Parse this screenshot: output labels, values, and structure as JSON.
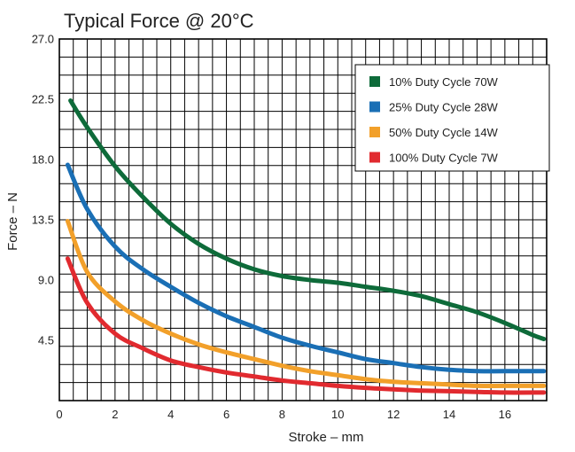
{
  "chart_data": {
    "type": "line",
    "title": "Typical Force @ 20°C",
    "xlabel": "Stroke – mm",
    "ylabel": "Force – N",
    "xlim": [
      0,
      17.5
    ],
    "ylim": [
      0,
      27
    ],
    "x_ticks": [
      "0",
      "2",
      "4",
      "6",
      "8",
      "10",
      "12",
      "14",
      "16"
    ],
    "y_ticks": [
      "4.5",
      "9.0",
      "13.5",
      "18.0",
      "22.5",
      "27.0"
    ],
    "grid": true,
    "legend_position": "top-right",
    "series": [
      {
        "name": "10% Duty Cycle 70W",
        "color": "#0e6b3a",
        "points": [
          [
            0.4,
            22.4
          ],
          [
            1,
            20.4
          ],
          [
            2,
            17.5
          ],
          [
            3,
            15.2
          ],
          [
            4,
            13.2
          ],
          [
            5,
            11.7
          ],
          [
            6,
            10.6
          ],
          [
            7,
            9.8
          ],
          [
            8,
            9.3
          ],
          [
            9,
            9.0
          ],
          [
            10,
            8.8
          ],
          [
            11,
            8.5
          ],
          [
            12,
            8.2
          ],
          [
            13,
            7.8
          ],
          [
            14,
            7.2
          ],
          [
            15,
            6.6
          ],
          [
            16,
            5.8
          ],
          [
            17,
            4.9
          ],
          [
            17.4,
            4.6
          ]
        ]
      },
      {
        "name": "25% Duty Cycle 28W",
        "color": "#1a6fb5",
        "points": [
          [
            0.3,
            17.6
          ],
          [
            1,
            14.3
          ],
          [
            2,
            11.5
          ],
          [
            3,
            9.8
          ],
          [
            4,
            8.5
          ],
          [
            5,
            7.3
          ],
          [
            6,
            6.3
          ],
          [
            7,
            5.5
          ],
          [
            8,
            4.7
          ],
          [
            9,
            4.1
          ],
          [
            10,
            3.6
          ],
          [
            11,
            3.1
          ],
          [
            12,
            2.8
          ],
          [
            13,
            2.5
          ],
          [
            14,
            2.3
          ],
          [
            15,
            2.2
          ],
          [
            16,
            2.2
          ],
          [
            17.4,
            2.2
          ]
        ]
      },
      {
        "name": "50% Duty Cycle 14W",
        "color": "#f2a02a",
        "points": [
          [
            0.3,
            13.4
          ],
          [
            1,
            9.6
          ],
          [
            2,
            7.4
          ],
          [
            3,
            6.0
          ],
          [
            4,
            5.0
          ],
          [
            5,
            4.2
          ],
          [
            6,
            3.6
          ],
          [
            7,
            3.1
          ],
          [
            8,
            2.6
          ],
          [
            9,
            2.2
          ],
          [
            10,
            1.9
          ],
          [
            11,
            1.6
          ],
          [
            12,
            1.4
          ],
          [
            13,
            1.3
          ],
          [
            14,
            1.2
          ],
          [
            15,
            1.1
          ],
          [
            16,
            1.1
          ],
          [
            17.4,
            1.1
          ]
        ]
      },
      {
        "name": "100% Duty Cycle 7W",
        "color": "#e12a2f",
        "points": [
          [
            0.3,
            10.6
          ],
          [
            1,
            7.3
          ],
          [
            2,
            5.0
          ],
          [
            3,
            3.9
          ],
          [
            4,
            3.0
          ],
          [
            5,
            2.5
          ],
          [
            6,
            2.1
          ],
          [
            7,
            1.8
          ],
          [
            8,
            1.5
          ],
          [
            9,
            1.3
          ],
          [
            10,
            1.1
          ],
          [
            11,
            0.95
          ],
          [
            12,
            0.85
          ],
          [
            13,
            0.75
          ],
          [
            14,
            0.7
          ],
          [
            15,
            0.65
          ],
          [
            16,
            0.6
          ],
          [
            17.4,
            0.6
          ]
        ]
      }
    ]
  }
}
